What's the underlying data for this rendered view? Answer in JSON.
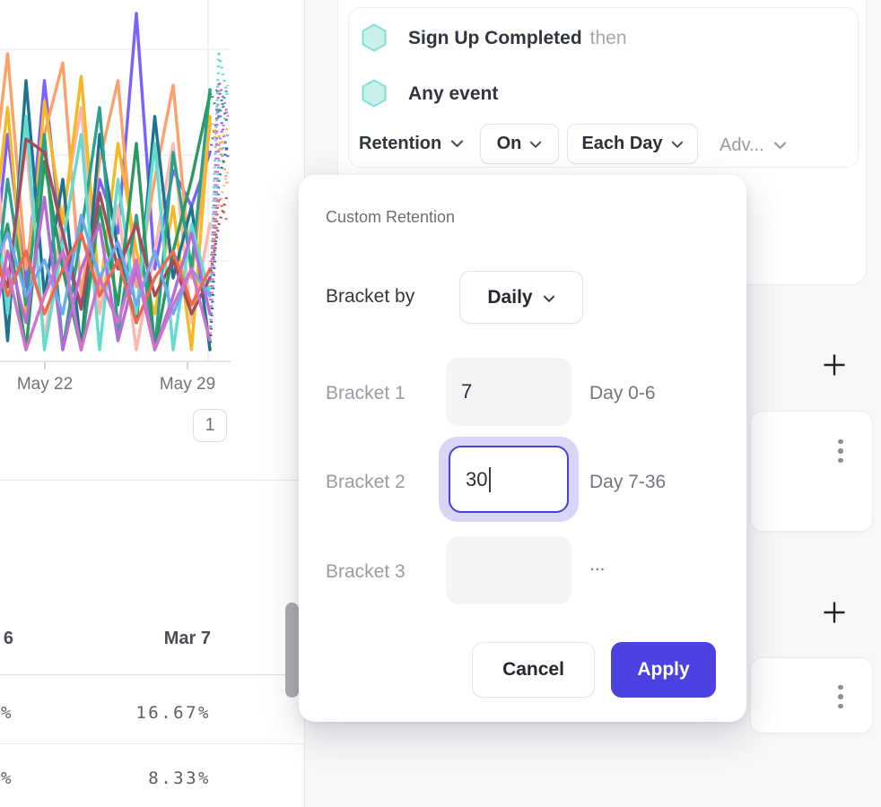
{
  "chart": {
    "type": "line",
    "x_labels": [
      "May 22",
      "May 29"
    ],
    "pagination_label": "1",
    "series": [
      {
        "color": "#7b61ff",
        "values": [
          350,
          150,
          320,
          90,
          280,
          340,
          200,
          260,
          15,
          300,
          190,
          230,
          170,
          120,
          175
        ]
      },
      {
        "color": "#ffa06b",
        "values": [
          240,
          60,
          300,
          150,
          70,
          330,
          180,
          90,
          320,
          200,
          95,
          310,
          140,
          150,
          210
        ]
      },
      {
        "color": "#ffb6ac",
        "values": [
          90,
          320,
          160,
          380,
          240,
          120,
          350,
          230,
          390,
          280,
          160,
          360,
          250,
          230,
          190
        ]
      },
      {
        "color": "#f7b821",
        "values": [
          300,
          120,
          350,
          113,
          250,
          85,
          330,
          160,
          280,
          350,
          230,
          390,
          130,
          170,
          140
        ]
      },
      {
        "color": "#1d7390",
        "values": [
          140,
          380,
          90,
          330,
          200,
          390,
          150,
          280,
          360,
          130,
          310,
          230,
          390,
          200,
          160
        ]
      },
      {
        "color": "#2ba18c",
        "values": [
          390,
          200,
          340,
          150,
          390,
          260,
          120,
          370,
          240,
          390,
          170,
          300,
          100,
          130,
          95
        ]
      },
      {
        "color": "#63dbce",
        "values": [
          160,
          350,
          130,
          390,
          270,
          150,
          390,
          200,
          350,
          160,
          390,
          250,
          330,
          60,
          110
        ]
      },
      {
        "color": "#2a9a60",
        "values": [
          330,
          250,
          390,
          180,
          300,
          390,
          230,
          340,
          160,
          390,
          280,
          200,
          105,
          100,
          140
        ]
      },
      {
        "color": "#a34d5c",
        "values": [
          280,
          320,
          155,
          170,
          260,
          345,
          215,
          300,
          250,
          330,
          290,
          350,
          310,
          250,
          215
        ]
      },
      {
        "color": "#b76bdb",
        "values": [
          390,
          280,
          360,
          220,
          390,
          300,
          250,
          380,
          300,
          390,
          330,
          260,
          350,
          90,
          130
        ]
      },
      {
        "color": "#6fa7f2",
        "values": [
          310,
          260,
          330,
          290,
          350,
          240,
          310,
          270,
          340,
          280,
          350,
          300,
          330,
          180,
          150
        ]
      },
      {
        "color": "#ec6a4e",
        "values": [
          250,
          330,
          280,
          350,
          300,
          260,
          330,
          290,
          360,
          310,
          280,
          340,
          300,
          220,
          250
        ]
      },
      {
        "color": "#d171cf",
        "values": [
          360,
          300,
          390,
          330,
          280,
          390,
          310,
          360,
          290,
          390,
          340,
          300,
          380,
          160,
          120
        ]
      }
    ]
  },
  "query_panel": {
    "events": [
      {
        "name": "Sign Up Completed",
        "suffix": "then"
      },
      {
        "name": "Any event",
        "suffix": ""
      }
    ],
    "controls": {
      "measure": "Retention",
      "on": "On",
      "interval": "Each Day",
      "advanced": "Adv..."
    }
  },
  "modal": {
    "title": "Custom Retention",
    "bracket_by_label": "Bracket by",
    "bracket_by_value": "Daily",
    "brackets": [
      {
        "label": "Bracket 1",
        "value": "7",
        "range": "Day 0-6"
      },
      {
        "label": "Bracket 2",
        "value": "30",
        "range": "Day 7-36"
      },
      {
        "label": "Bracket 3",
        "value": "",
        "range": "..."
      }
    ],
    "cancel_label": "Cancel",
    "apply_label": "Apply"
  },
  "table": {
    "columns": [
      "6",
      "Mar 7"
    ],
    "rows": [
      [
        "%",
        "16.67%"
      ],
      [
        "%",
        "8.33%"
      ]
    ]
  },
  "colors": {
    "accent": "#4c42e2",
    "focus_ring": "#d9d5f8",
    "hexagon_fill": "#c9f1ec",
    "hexagon_stroke": "#7fe0d4",
    "scrollbar": "#acacb1"
  }
}
